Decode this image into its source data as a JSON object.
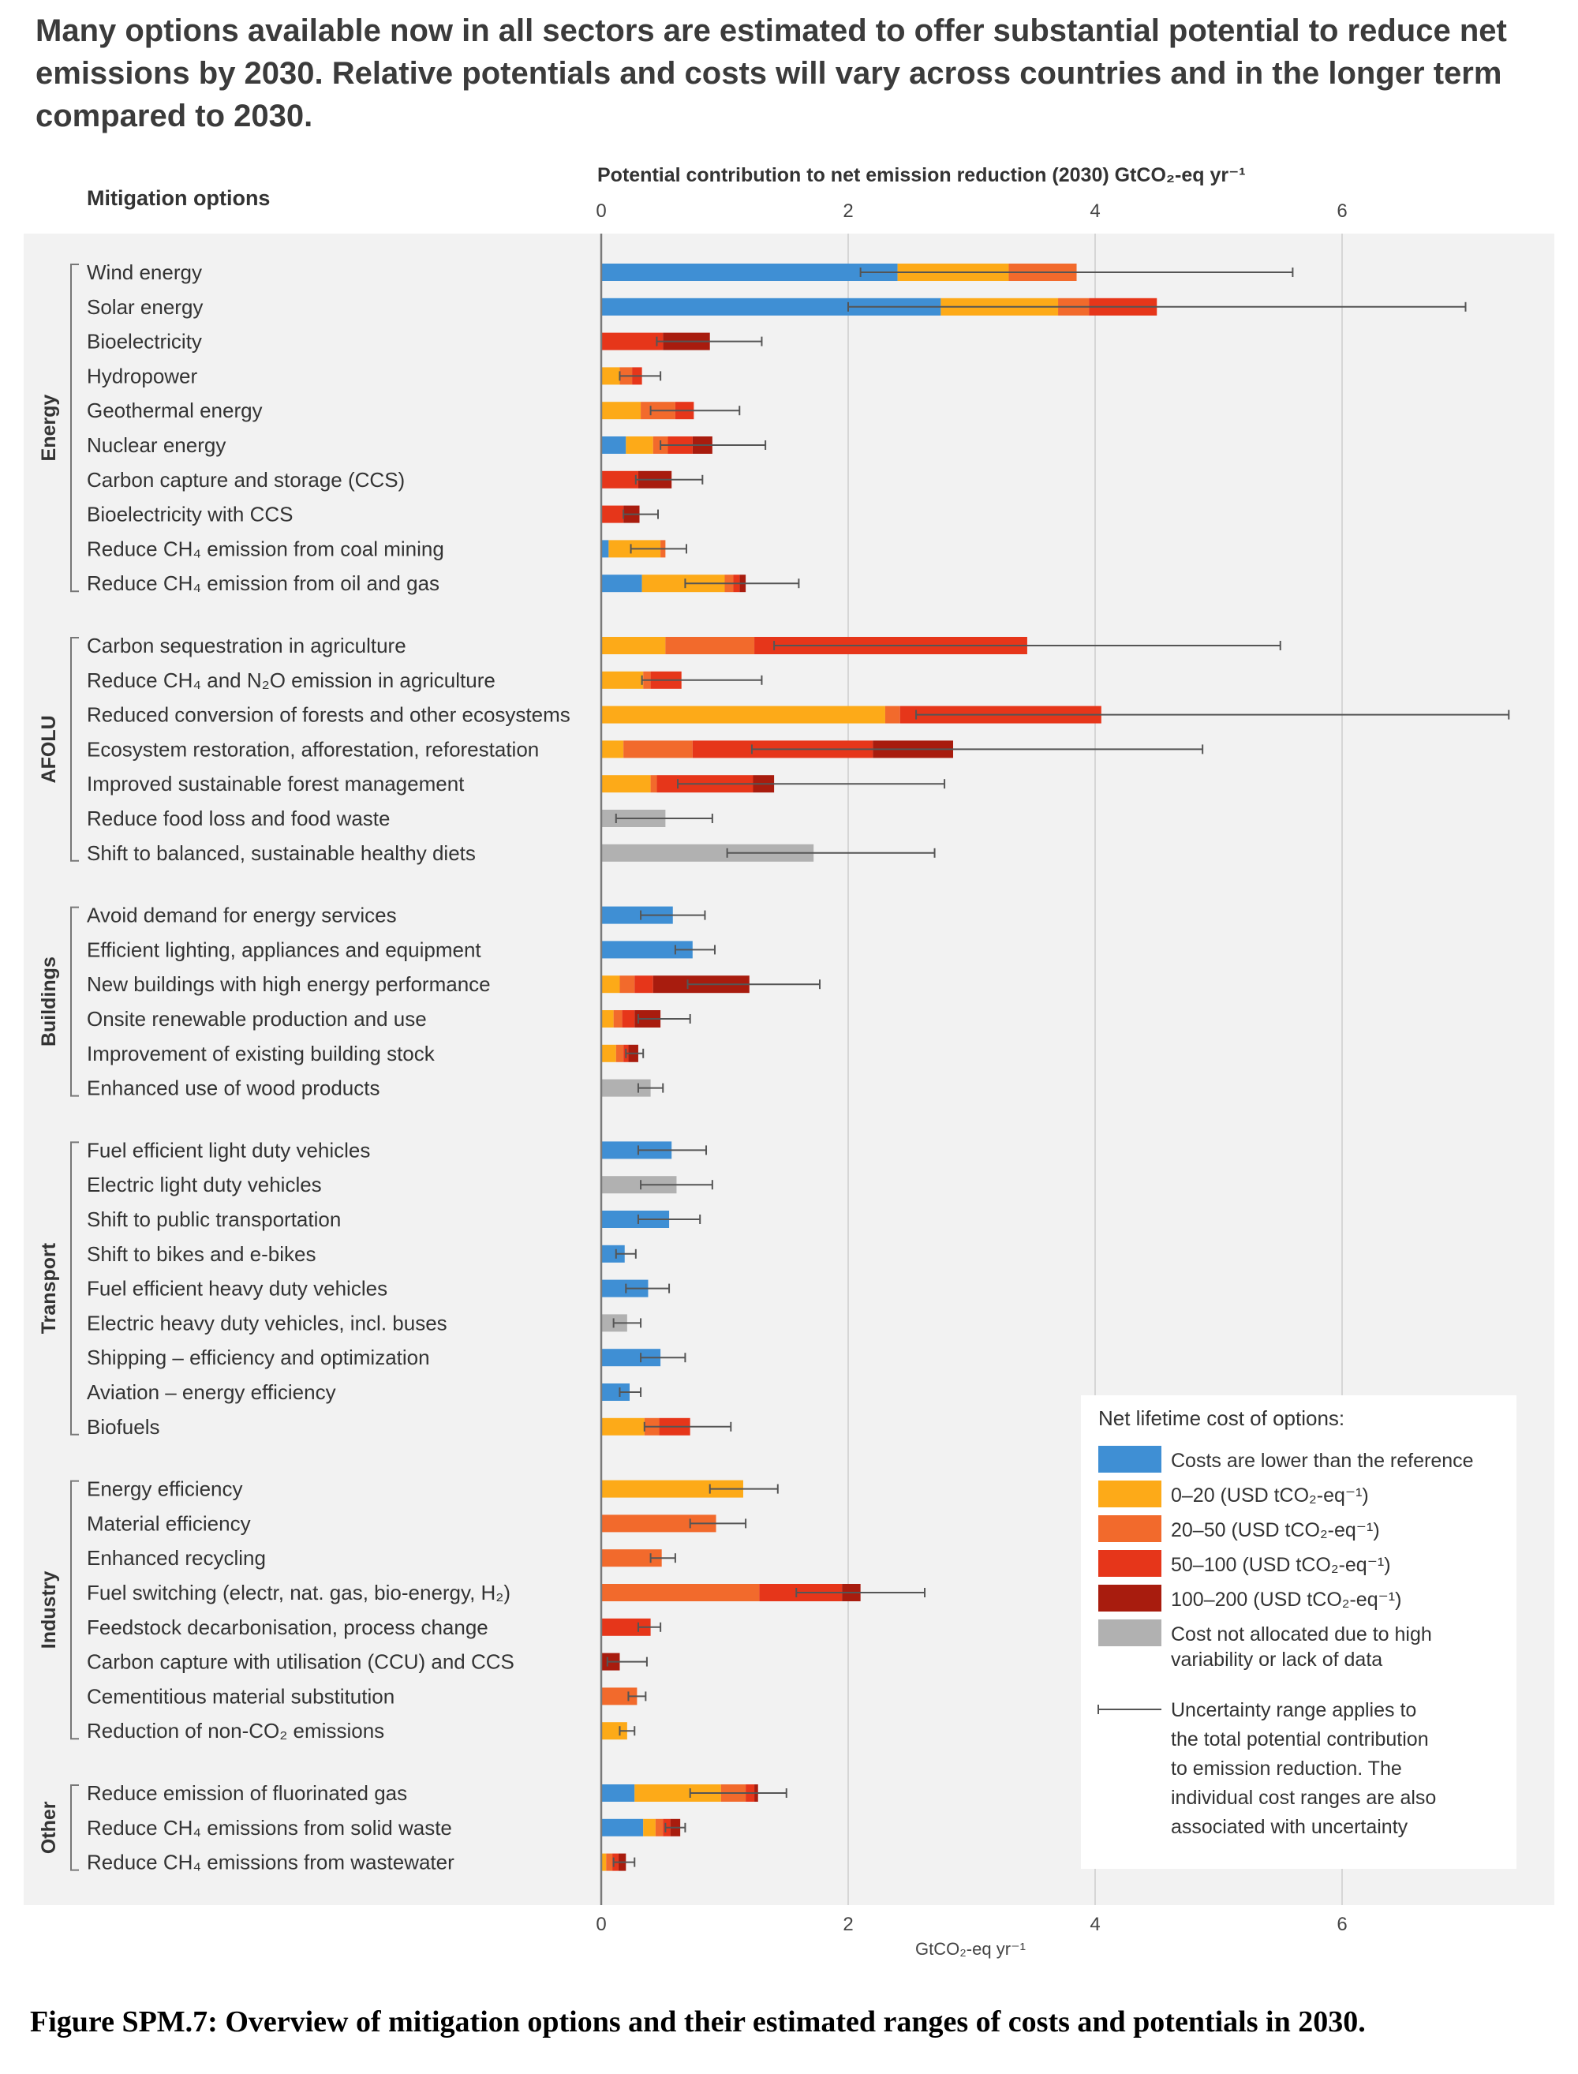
{
  "headline": "Many options available now in all sectors are estimated to offer substantial potential to reduce net emissions by 2030. Relative potentials and costs will vary across countries and in the longer term compared to 2030.",
  "caption": "Figure SPM.7: Overview of mitigation options and their estimated ranges of costs and potentials in 2030.",
  "colors": {
    "lower": "#3f8fd4",
    "c0_20": "#fdaa18",
    "c20_50": "#f26a2c",
    "c50_100": "#e6361a",
    "c100_200": "#a81c0e",
    "na": "#b1b1b1",
    "panel": "#f2f2f2"
  },
  "chart_data": {
    "type": "bar",
    "orientation": "horizontal-stacked",
    "options_header": "Mitigation options",
    "xlabel_top": "Potential contribution to net emission reduction (2030) GtCO₂-eq yr⁻¹",
    "xlabel_bottom": "GtCO₂-eq yr⁻¹",
    "xlim": [
      0,
      7.4
    ],
    "xticks": [
      "0",
      "2",
      "4",
      "6"
    ],
    "grid": true,
    "legend_position": "bottom-right",
    "legend": {
      "title": "Net lifetime cost of options:",
      "items": [
        {
          "key": "lower",
          "label": "Costs are lower than the reference"
        },
        {
          "key": "c0_20",
          "label": "0–20 (USD tCO₂-eq⁻¹)"
        },
        {
          "key": "c20_50",
          "label": "20–50 (USD tCO₂-eq⁻¹)"
        },
        {
          "key": "c50_100",
          "label": "50–100 (USD tCO₂-eq⁻¹)"
        },
        {
          "key": "c100_200",
          "label": "100–200 (USD tCO₂-eq⁻¹)"
        },
        {
          "key": "na",
          "label": "Cost not allocated due to high variability or lack of data"
        }
      ],
      "uncertainty_text": "Uncertainty range applies to the total potential contribution to emission reduction. The individual cost ranges are also associated with uncertainty"
    },
    "sectors": [
      {
        "name": "Energy",
        "options": [
          {
            "label": "Wind energy",
            "segments": [
              [
                "lower",
                2.4
              ],
              [
                "c0_20",
                0.9
              ],
              [
                "c20_50",
                0.55
              ]
            ],
            "err": [
              2.1,
              5.6
            ]
          },
          {
            "label": "Solar energy",
            "segments": [
              [
                "lower",
                2.75
              ],
              [
                "c0_20",
                0.95
              ],
              [
                "c20_50",
                0.25
              ],
              [
                "c50_100",
                0.55
              ]
            ],
            "err": [
              2.0,
              7.0
            ]
          },
          {
            "label": "Bioelectricity",
            "segments": [
              [
                "c50_100",
                0.5
              ],
              [
                "c100_200",
                0.38
              ]
            ],
            "err": [
              0.45,
              1.3
            ]
          },
          {
            "label": "Hydropower",
            "segments": [
              [
                "c0_20",
                0.15
              ],
              [
                "c20_50",
                0.1
              ],
              [
                "c50_100",
                0.08
              ]
            ],
            "err": [
              0.15,
              0.48
            ]
          },
          {
            "label": "Geothermal energy",
            "segments": [
              [
                "c0_20",
                0.32
              ],
              [
                "c20_50",
                0.28
              ],
              [
                "c50_100",
                0.15
              ]
            ],
            "err": [
              0.4,
              1.12
            ]
          },
          {
            "label": "Nuclear energy",
            "segments": [
              [
                "lower",
                0.2
              ],
              [
                "c0_20",
                0.22
              ],
              [
                "c20_50",
                0.12
              ],
              [
                "c50_100",
                0.2
              ],
              [
                "c100_200",
                0.16
              ]
            ],
            "err": [
              0.48,
              1.33
            ]
          },
          {
            "label": "Carbon capture and storage (CCS)",
            "segments": [
              [
                "c50_100",
                0.3
              ],
              [
                "c100_200",
                0.27
              ]
            ],
            "err": [
              0.28,
              0.82
            ]
          },
          {
            "label": "Bioelectricity with CCS",
            "segments": [
              [
                "c50_100",
                0.18
              ],
              [
                "c100_200",
                0.13
              ]
            ],
            "err": [
              0.18,
              0.46
            ]
          },
          {
            "label": "Reduce CH₄ emission from coal mining",
            "segments": [
              [
                "lower",
                0.06
              ],
              [
                "c0_20",
                0.42
              ],
              [
                "c20_50",
                0.04
              ]
            ],
            "err": [
              0.24,
              0.69
            ]
          },
          {
            "label": "Reduce CH₄ emission from oil and gas",
            "segments": [
              [
                "lower",
                0.33
              ],
              [
                "c0_20",
                0.67
              ],
              [
                "c20_50",
                0.07
              ],
              [
                "c50_100",
                0.05
              ],
              [
                "c100_200",
                0.05
              ]
            ],
            "err": [
              0.68,
              1.6
            ]
          }
        ]
      },
      {
        "name": "AFOLU",
        "options": [
          {
            "label": "Carbon sequestration in agriculture",
            "segments": [
              [
                "c0_20",
                0.52
              ],
              [
                "c20_50",
                0.72
              ],
              [
                "c50_100",
                2.21
              ]
            ],
            "err": [
              1.4,
              5.5
            ]
          },
          {
            "label": "Reduce CH₄ and N₂O emission in agriculture",
            "segments": [
              [
                "c0_20",
                0.34
              ],
              [
                "c20_50",
                0.06
              ],
              [
                "c50_100",
                0.25
              ]
            ],
            "err": [
              0.33,
              1.3
            ]
          },
          {
            "label": "Reduced conversion of forests and other ecosystems",
            "segments": [
              [
                "c0_20",
                2.3
              ],
              [
                "c20_50",
                0.12
              ],
              [
                "c50_100",
                1.63
              ]
            ],
            "err": [
              2.55,
              7.35
            ]
          },
          {
            "label": "Ecosystem restoration, afforestation, reforestation",
            "segments": [
              [
                "c0_20",
                0.18
              ],
              [
                "c20_50",
                0.56
              ],
              [
                "c50_100",
                1.46
              ],
              [
                "c100_200",
                0.65
              ]
            ],
            "err": [
              1.22,
              4.87
            ]
          },
          {
            "label": "Improved sustainable forest management",
            "segments": [
              [
                "c0_20",
                0.4
              ],
              [
                "c20_50",
                0.05
              ],
              [
                "c50_100",
                0.78
              ],
              [
                "c100_200",
                0.17
              ]
            ],
            "err": [
              0.62,
              2.78
            ]
          },
          {
            "label": "Reduce food loss and food waste",
            "segments": [
              [
                "na",
                0.52
              ]
            ],
            "err": [
              0.12,
              0.9
            ]
          },
          {
            "label": "Shift to balanced, sustainable healthy diets",
            "segments": [
              [
                "na",
                1.72
              ]
            ],
            "err": [
              1.02,
              2.7
            ]
          }
        ]
      },
      {
        "name": "Buildings",
        "options": [
          {
            "label": "Avoid demand for energy services",
            "segments": [
              [
                "lower",
                0.58
              ]
            ],
            "err": [
              0.32,
              0.84
            ]
          },
          {
            "label": "Efficient lighting, appliances and equipment",
            "segments": [
              [
                "lower",
                0.74
              ]
            ],
            "err": [
              0.6,
              0.92
            ]
          },
          {
            "label": "New buildings with high energy performance",
            "segments": [
              [
                "c0_20",
                0.15
              ],
              [
                "c20_50",
                0.12
              ],
              [
                "c50_100",
                0.15
              ],
              [
                "c100_200",
                0.78
              ]
            ],
            "err": [
              0.7,
              1.77
            ]
          },
          {
            "label": "Onsite renewable production and use",
            "segments": [
              [
                "c0_20",
                0.1
              ],
              [
                "c20_50",
                0.07
              ],
              [
                "c50_100",
                0.1
              ],
              [
                "c100_200",
                0.21
              ]
            ],
            "err": [
              0.3,
              0.72
            ]
          },
          {
            "label": "Improvement of existing building stock",
            "segments": [
              [
                "c0_20",
                0.12
              ],
              [
                "c20_50",
                0.06
              ],
              [
                "c50_100",
                0.04
              ],
              [
                "c100_200",
                0.08
              ]
            ],
            "err": [
              0.2,
              0.34
            ]
          },
          {
            "label": "Enhanced use of wood products",
            "segments": [
              [
                "na",
                0.4
              ]
            ],
            "err": [
              0.3,
              0.5
            ]
          }
        ]
      },
      {
        "name": "Transport",
        "options": [
          {
            "label": "Fuel efficient light duty vehicles",
            "segments": [
              [
                "lower",
                0.57
              ]
            ],
            "err": [
              0.3,
              0.85
            ]
          },
          {
            "label": "Electric light duty vehicles",
            "segments": [
              [
                "na",
                0.61
              ]
            ],
            "err": [
              0.32,
              0.9
            ]
          },
          {
            "label": "Shift to public transportation",
            "segments": [
              [
                "lower",
                0.55
              ]
            ],
            "err": [
              0.3,
              0.8
            ]
          },
          {
            "label": "Shift to bikes and e-bikes",
            "segments": [
              [
                "lower",
                0.19
              ]
            ],
            "err": [
              0.12,
              0.28
            ]
          },
          {
            "label": "Fuel efficient heavy duty vehicles",
            "segments": [
              [
                "lower",
                0.38
              ]
            ],
            "err": [
              0.2,
              0.55
            ]
          },
          {
            "label": "Electric heavy duty vehicles, incl. buses",
            "segments": [
              [
                "na",
                0.21
              ]
            ],
            "err": [
              0.1,
              0.32
            ]
          },
          {
            "label": "Shipping – efficiency and optimization",
            "segments": [
              [
                "lower",
                0.48
              ]
            ],
            "err": [
              0.32,
              0.68
            ]
          },
          {
            "label": "Aviation – energy efficiency",
            "segments": [
              [
                "lower",
                0.23
              ]
            ],
            "err": [
              0.15,
              0.32
            ]
          },
          {
            "label": "Biofuels",
            "segments": [
              [
                "c0_20",
                0.35
              ],
              [
                "c20_50",
                0.12
              ],
              [
                "c50_100",
                0.25
              ]
            ],
            "err": [
              0.35,
              1.05
            ]
          }
        ]
      },
      {
        "name": "Industry",
        "options": [
          {
            "label": "Energy efficiency",
            "segments": [
              [
                "c0_20",
                1.15
              ]
            ],
            "err": [
              0.88,
              1.43
            ]
          },
          {
            "label": "Material efficiency",
            "segments": [
              [
                "c20_50",
                0.93
              ]
            ],
            "err": [
              0.72,
              1.17
            ]
          },
          {
            "label": "Enhanced recycling",
            "segments": [
              [
                "c20_50",
                0.49
              ]
            ],
            "err": [
              0.4,
              0.6
            ]
          },
          {
            "label": "Fuel switching (electr, nat. gas, bio-energy, H₂)",
            "segments": [
              [
                "c20_50",
                1.28
              ],
              [
                "c50_100",
                0.67
              ],
              [
                "c100_200",
                0.15
              ]
            ],
            "err": [
              1.58,
              2.62
            ]
          },
          {
            "label": "Feedstock decarbonisation, process change",
            "segments": [
              [
                "c50_100",
                0.4
              ]
            ],
            "err": [
              0.3,
              0.48
            ]
          },
          {
            "label": "Carbon capture with utilisation (CCU) and CCS",
            "segments": [
              [
                "c100_200",
                0.15
              ]
            ],
            "err": [
              0.05,
              0.37
            ]
          },
          {
            "label": "Cementitious material substitution",
            "segments": [
              [
                "c20_50",
                0.29
              ]
            ],
            "err": [
              0.22,
              0.36
            ]
          },
          {
            "label": "Reduction of non-CO₂ emissions",
            "segments": [
              [
                "c0_20",
                0.21
              ]
            ],
            "err": [
              0.15,
              0.27
            ]
          }
        ]
      },
      {
        "name": "Other",
        "options": [
          {
            "label": "Reduce emission of fluorinated gas",
            "segments": [
              [
                "lower",
                0.27
              ],
              [
                "c0_20",
                0.7
              ],
              [
                "c20_50",
                0.2
              ],
              [
                "c50_100",
                0.07
              ],
              [
                "c100_200",
                0.03
              ]
            ],
            "err": [
              0.72,
              1.5
            ]
          },
          {
            "label": "Reduce CH₄ emissions from solid waste",
            "segments": [
              [
                "lower",
                0.34
              ],
              [
                "c0_20",
                0.1
              ],
              [
                "c20_50",
                0.06
              ],
              [
                "c50_100",
                0.06
              ],
              [
                "c100_200",
                0.08
              ]
            ],
            "err": [
              0.52,
              0.68
            ]
          },
          {
            "label": "Reduce CH₄ emissions from wastewater",
            "segments": [
              [
                "c0_20",
                0.04
              ],
              [
                "c20_50",
                0.05
              ],
              [
                "c50_100",
                0.05
              ],
              [
                "c100_200",
                0.06
              ]
            ],
            "err": [
              0.1,
              0.27
            ]
          }
        ]
      }
    ]
  }
}
